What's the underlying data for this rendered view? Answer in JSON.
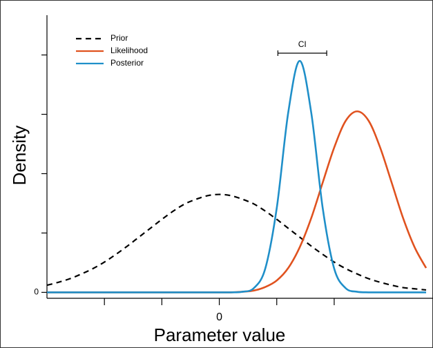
{
  "chart_data": {
    "type": "line",
    "xlabel": "Parameter value",
    "ylabel": "Density",
    "x": [
      -3.0,
      -2.8,
      -2.6,
      -2.4,
      -2.2,
      -2.0,
      -1.8,
      -1.6,
      -1.4,
      -1.2,
      -1.0,
      -0.8,
      -0.6,
      -0.4,
      -0.2,
      0,
      0.2,
      0.4,
      0.6,
      0.8,
      1.0,
      1.2,
      1.4,
      1.6,
      1.8,
      2.0,
      2.2,
      2.4,
      2.6,
      2.8,
      3.0,
      3.2,
      3.4,
      3.6
    ],
    "series": [
      {
        "name": "Prior",
        "color": "#000000",
        "dashed": true,
        "values": [
          0.12,
          0.17,
          0.23,
          0.31,
          0.4,
          0.51,
          0.64,
          0.78,
          0.93,
          1.08,
          1.23,
          1.37,
          1.49,
          1.57,
          1.63,
          1.65,
          1.63,
          1.57,
          1.49,
          1.37,
          1.23,
          1.08,
          0.93,
          0.78,
          0.64,
          0.51,
          0.4,
          0.31,
          0.23,
          0.17,
          0.12,
          0.08,
          0.06,
          0.04
        ]
      },
      {
        "name": "Likelihood",
        "color": "#e0521f",
        "dashed": false,
        "values": [
          0,
          0,
          0,
          0,
          0,
          0,
          0,
          0,
          0,
          0,
          0,
          0,
          0,
          0,
          0,
          0,
          0,
          0.01,
          0.03,
          0.09,
          0.2,
          0.41,
          0.76,
          1.25,
          1.85,
          2.44,
          2.89,
          3.05,
          2.89,
          2.44,
          1.85,
          1.25,
          0.76,
          0.41
        ]
      },
      {
        "name": "Posterior",
        "color": "#1f8fc9",
        "dashed": false,
        "values": [
          0,
          0,
          0,
          0,
          0,
          0,
          0,
          0,
          0,
          0,
          0,
          0,
          0,
          0,
          0,
          0,
          0,
          0.01,
          0.07,
          0.4,
          1.42,
          3.03,
          3.9,
          3.03,
          1.42,
          0.4,
          0.07,
          0.01,
          0,
          0,
          0,
          0,
          0,
          0
        ]
      }
    ],
    "ci": {
      "label": "CI",
      "low": 1.02,
      "high": 1.87,
      "level": 4.03
    },
    "xlim": [
      -3,
      3.72
    ],
    "ylim": [
      -0.1,
      4.67
    ],
    "xticks": [
      -2,
      -1,
      0,
      1,
      2
    ],
    "xtick_labels": [
      0
    ],
    "yticks": [
      0,
      1,
      2,
      3,
      4
    ],
    "ytick_labels": [
      0
    ]
  }
}
